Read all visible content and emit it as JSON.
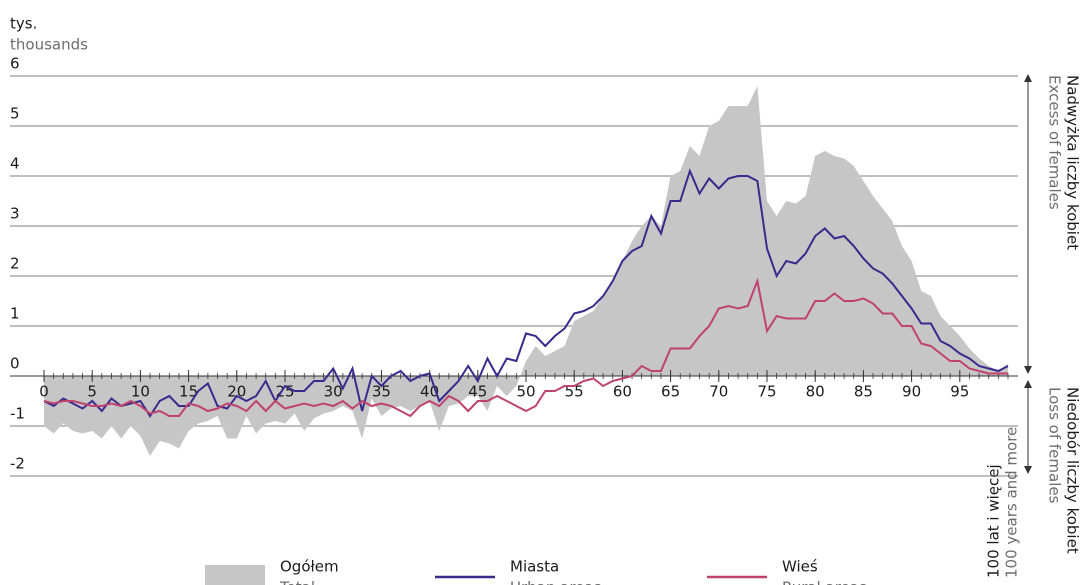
{
  "chart_data": {
    "type": "area-line",
    "y_unit": "tys.",
    "y_unit_en": "thousands",
    "annotation_top": "Nadwyżka liczby kobiet",
    "annotation_top_en": "Excess of females",
    "annotation_bottom": "Niedobór liczby kobiet",
    "annotation_bottom_en": "Loss of females",
    "last_age_label": "100 lat i więcej",
    "last_age_label_en": "100 years and more",
    "x": [
      0,
      1,
      2,
      3,
      4,
      5,
      6,
      7,
      8,
      9,
      10,
      11,
      12,
      13,
      14,
      15,
      16,
      17,
      18,
      19,
      20,
      21,
      22,
      23,
      24,
      25,
      26,
      27,
      28,
      29,
      30,
      31,
      32,
      33,
      34,
      35,
      36,
      37,
      38,
      39,
      40,
      41,
      42,
      43,
      44,
      45,
      46,
      47,
      48,
      49,
      50,
      51,
      52,
      53,
      54,
      55,
      56,
      57,
      58,
      59,
      60,
      61,
      62,
      63,
      64,
      65,
      66,
      67,
      68,
      69,
      70,
      71,
      72,
      73,
      74,
      75,
      76,
      77,
      78,
      79,
      80,
      81,
      82,
      83,
      84,
      85,
      86,
      87,
      88,
      89,
      90,
      91,
      92,
      93,
      94,
      95,
      96,
      97,
      98,
      99,
      100
    ],
    "xlim": [
      0,
      100
    ],
    "xticks": [
      0,
      5,
      10,
      15,
      20,
      25,
      30,
      35,
      40,
      45,
      50,
      55,
      60,
      65,
      70,
      75,
      80,
      85,
      90,
      95
    ],
    "ylim": [
      -2.6,
      6
    ],
    "yticks": [
      -2,
      -1,
      0,
      1,
      2,
      3,
      4,
      5,
      6
    ],
    "grid": true,
    "series": [
      {
        "name": "Ogółem",
        "name_en": "Total",
        "color": "#c6c6c6",
        "style": "area",
        "values": [
          -1.0,
          -1.15,
          -0.95,
          -1.1,
          -1.15,
          -1.1,
          -1.25,
          -1.0,
          -1.25,
          -1.0,
          -1.2,
          -1.6,
          -1.3,
          -1.35,
          -1.45,
          -1.1,
          -0.95,
          -0.9,
          -0.8,
          -1.25,
          -1.25,
          -0.8,
          -1.15,
          -0.95,
          -0.9,
          -0.95,
          -0.75,
          -1.1,
          -0.85,
          -0.75,
          -0.7,
          -0.6,
          -0.7,
          -1.25,
          -0.45,
          -0.8,
          -0.65,
          -0.6,
          -0.7,
          -0.6,
          -0.5,
          -1.1,
          -0.6,
          -0.55,
          -0.4,
          -0.4,
          -0.7,
          -0.2,
          -0.4,
          -0.2,
          0.3,
          0.6,
          0.4,
          0.5,
          0.6,
          1.1,
          1.2,
          1.3,
          1.6,
          1.9,
          2.3,
          2.7,
          3.0,
          3.2,
          3.0,
          4.0,
          4.1,
          4.6,
          4.4,
          5.0,
          5.1,
          5.4,
          5.4,
          5.4,
          5.8,
          3.5,
          3.2,
          3.5,
          3.45,
          3.6,
          4.4,
          4.5,
          4.4,
          4.35,
          4.2,
          3.9,
          3.6,
          3.35,
          3.1,
          2.6,
          2.3,
          1.7,
          1.6,
          1.2,
          1.0,
          0.8,
          0.55,
          0.35,
          0.2,
          0.1,
          0.25
        ]
      },
      {
        "name": "Miasta",
        "name_en": "Urban areas",
        "color": "#3b2a8c",
        "style": "line",
        "values": [
          -0.5,
          -0.6,
          -0.45,
          -0.55,
          -0.65,
          -0.5,
          -0.7,
          -0.45,
          -0.6,
          -0.55,
          -0.5,
          -0.8,
          -0.5,
          -0.4,
          -0.6,
          -0.6,
          -0.3,
          -0.15,
          -0.6,
          -0.65,
          -0.4,
          -0.5,
          -0.4,
          -0.1,
          -0.5,
          -0.2,
          -0.3,
          -0.3,
          -0.1,
          -0.1,
          0.15,
          -0.25,
          0.15,
          -0.7,
          0.0,
          -0.2,
          0.0,
          0.1,
          -0.1,
          0.0,
          0.05,
          -0.5,
          -0.3,
          -0.1,
          0.2,
          -0.1,
          0.35,
          0.0,
          0.35,
          0.3,
          0.85,
          0.8,
          0.6,
          0.8,
          0.95,
          1.25,
          1.3,
          1.4,
          1.6,
          1.9,
          2.3,
          2.5,
          2.6,
          3.2,
          2.85,
          3.5,
          3.5,
          4.1,
          3.65,
          3.95,
          3.75,
          3.95,
          4.0,
          4.0,
          3.9,
          2.55,
          2.0,
          2.3,
          2.25,
          2.45,
          2.8,
          2.95,
          2.75,
          2.8,
          2.6,
          2.35,
          2.15,
          2.05,
          1.85,
          1.6,
          1.35,
          1.05,
          1.05,
          0.7,
          0.6,
          0.45,
          0.35,
          0.2,
          0.15,
          0.1,
          0.2
        ]
      },
      {
        "name": "Wieś",
        "name_en": "Rural areas",
        "color": "#c0436f",
        "style": "line",
        "values": [
          -0.5,
          -0.55,
          -0.5,
          -0.5,
          -0.55,
          -0.6,
          -0.6,
          -0.55,
          -0.6,
          -0.5,
          -0.6,
          -0.75,
          -0.7,
          -0.8,
          -0.8,
          -0.55,
          -0.6,
          -0.7,
          -0.65,
          -0.55,
          -0.6,
          -0.7,
          -0.5,
          -0.7,
          -0.5,
          -0.65,
          -0.6,
          -0.55,
          -0.6,
          -0.55,
          -0.6,
          -0.5,
          -0.65,
          -0.5,
          -0.6,
          -0.55,
          -0.6,
          -0.7,
          -0.8,
          -0.6,
          -0.5,
          -0.6,
          -0.4,
          -0.5,
          -0.7,
          -0.5,
          -0.5,
          -0.4,
          -0.5,
          -0.6,
          -0.7,
          -0.6,
          -0.3,
          -0.3,
          -0.2,
          -0.2,
          -0.1,
          -0.05,
          -0.2,
          -0.1,
          -0.05,
          0.0,
          0.2,
          0.1,
          0.1,
          0.55,
          0.55,
          0.55,
          0.8,
          1.0,
          1.35,
          1.4,
          1.35,
          1.4,
          1.9,
          0.9,
          1.2,
          1.15,
          1.15,
          1.15,
          1.5,
          1.5,
          1.65,
          1.5,
          1.5,
          1.55,
          1.45,
          1.25,
          1.25,
          1.0,
          1.0,
          0.65,
          0.6,
          0.45,
          0.3,
          0.3,
          0.15,
          0.1,
          0.05,
          0.05,
          0.05
        ]
      }
    ]
  }
}
